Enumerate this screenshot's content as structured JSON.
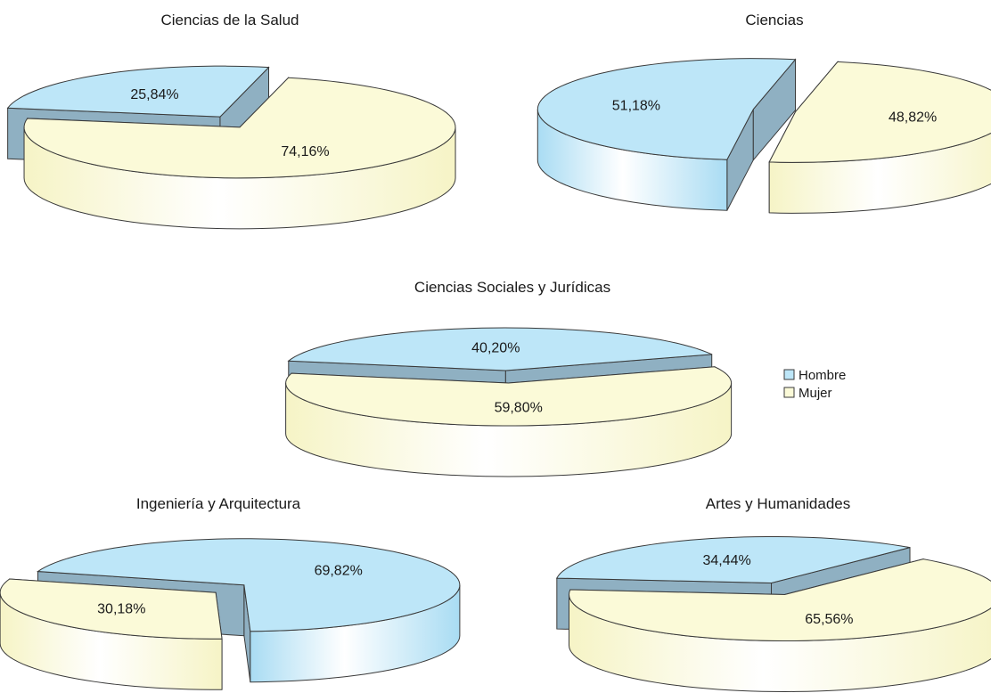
{
  "colors": {
    "hombre": "#bde6f8",
    "mujer": "#fbfad8",
    "hombre_dark": "#8fb0c2",
    "mujer_dark": "#c6c4a6",
    "stroke": "#3a3a3a"
  },
  "legend": {
    "items": [
      {
        "label": "Hombre",
        "color": "#bde6f8"
      },
      {
        "label": "Mujer",
        "color": "#fbfad8"
      }
    ]
  },
  "chart_data": [
    {
      "type": "pie",
      "title": "Ciencias de la Salud",
      "labels": [
        "Hombre",
        "Mujer"
      ],
      "values": [
        25.84,
        74.16
      ],
      "value_labels": [
        "25,84%",
        "74,16%"
      ]
    },
    {
      "type": "pie",
      "title": "Ciencias",
      "labels": [
        "Hombre",
        "Mujer"
      ],
      "values": [
        51.18,
        48.82
      ],
      "value_labels": [
        "51,18%",
        "48,82%"
      ]
    },
    {
      "type": "pie",
      "title": "Ciencias Sociales y Jurídicas",
      "labels": [
        "Hombre",
        "Mujer"
      ],
      "values": [
        40.2,
        59.8
      ],
      "value_labels": [
        "40,20%",
        "59,80%"
      ]
    },
    {
      "type": "pie",
      "title": "Ingeniería y Arquitectura",
      "labels": [
        "Hombre",
        "Mujer"
      ],
      "values": [
        69.82,
        30.18
      ],
      "value_labels": [
        "69,82%",
        "30,18%"
      ]
    },
    {
      "type": "pie",
      "title": "Artes y Humanidades",
      "labels": [
        "Hombre",
        "Mujer"
      ],
      "values": [
        34.44,
        65.56
      ],
      "value_labels": [
        "34,44%",
        "65,56%"
      ]
    }
  ]
}
